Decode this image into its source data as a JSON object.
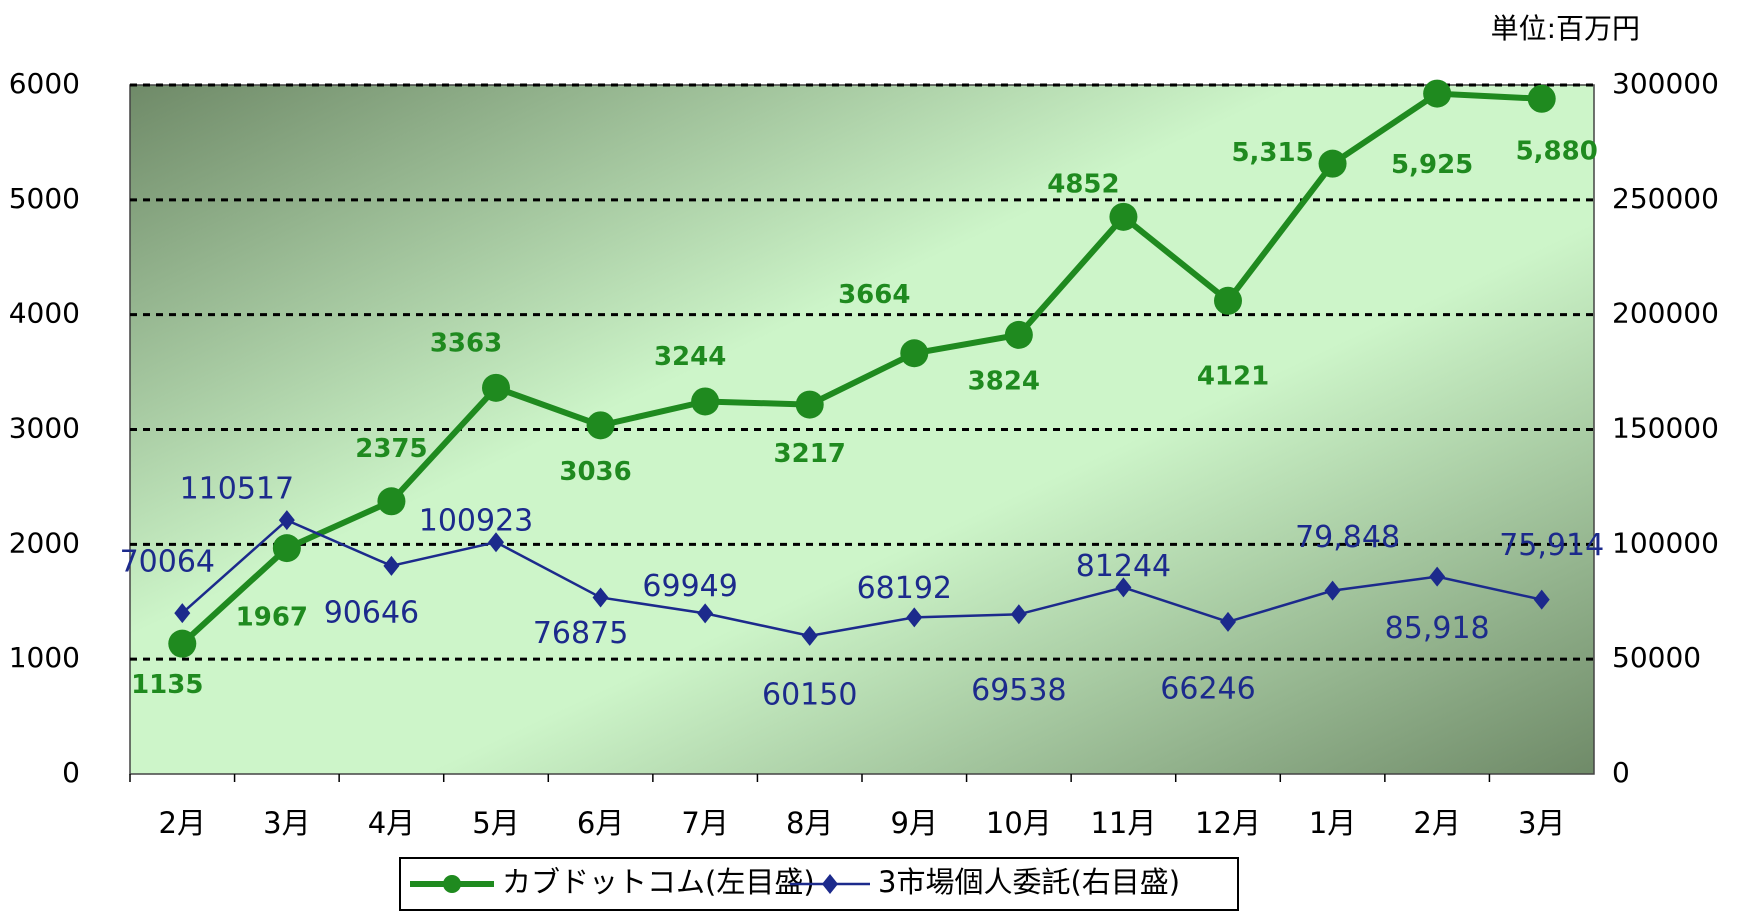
{
  "chart_data": {
    "type": "line",
    "unit_note": "単位:百万円",
    "categories": [
      "2月",
      "3月",
      "4月",
      "5月",
      "6月",
      "7月",
      "8月",
      "9月",
      "10月",
      "11月",
      "12月",
      "1月",
      "2月",
      "3月"
    ],
    "series": [
      {
        "name": "カブドットコム(左目盛)",
        "color": "#1f8a1f",
        "values": [
          1135,
          1967,
          2375,
          3363,
          3036,
          3244,
          3217,
          3664,
          3824,
          4852,
          4121,
          5315,
          5925,
          5880
        ],
        "value_labels": [
          "1135",
          "1967",
          "2375",
          "3363",
          "3036",
          "3244",
          "3217",
          "3664",
          "3824",
          "4852",
          "4121",
          "5,315",
          "5,925",
          "5,880"
        ]
      },
      {
        "name": "3市場個人委託(右目盛)",
        "color": "#1c2a8c",
        "axis": "y2",
        "values": [
          70064,
          110517,
          90646,
          100923,
          76875,
          69949,
          60150,
          68192,
          69538,
          81244,
          66246,
          79848,
          85918,
          75914
        ],
        "value_labels": [
          "70064",
          "110517",
          "90646",
          "100923",
          "76875",
          "69949",
          "60150",
          "68192",
          "69538",
          "81244",
          "66246",
          "79,848",
          "85,918",
          "75,914"
        ]
      }
    ],
    "ylim": [
      0,
      6000
    ],
    "yticks": [
      0,
      1000,
      2000,
      3000,
      4000,
      5000,
      6000
    ],
    "y2lim": [
      0,
      300000
    ],
    "y2ticks": [
      0,
      50000,
      100000,
      150000,
      200000,
      250000,
      300000
    ],
    "grid": true
  }
}
